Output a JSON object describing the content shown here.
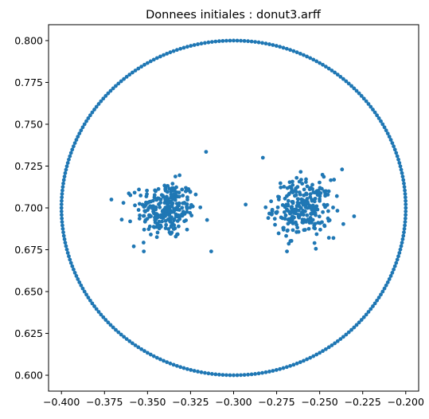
{
  "chart_data": {
    "type": "scatter",
    "title": "Donnees initiales : donut3.arff",
    "xlabel": "",
    "ylabel": "",
    "xlim": [
      -0.4075,
      -0.1925
    ],
    "ylim": [
      0.5905,
      0.8095
    ],
    "xticks": [
      -0.4,
      -0.375,
      -0.35,
      -0.325,
      -0.3,
      -0.275,
      -0.25,
      -0.225,
      -0.2
    ],
    "xtick_labels": [
      "−0.400",
      "−0.375",
      "−0.350",
      "−0.325",
      "−0.300",
      "−0.275",
      "−0.250",
      "−0.225",
      "−0.200"
    ],
    "yticks": [
      0.6,
      0.625,
      0.65,
      0.675,
      0.7,
      0.725,
      0.75,
      0.775,
      0.8
    ],
    "ytick_labels": [
      "0.600",
      "0.625",
      "0.650",
      "0.675",
      "0.700",
      "0.725",
      "0.750",
      "0.775",
      "0.800"
    ],
    "grid": false,
    "marker_color": "#1f77b4",
    "series": [
      {
        "ring": {
          "center": [
            -0.3,
            0.7
          ],
          "radius": 0.1,
          "count": 300
        },
        "clusters": [
          {
            "center": [
              -0.339,
              0.699
            ],
            "spread": 0.0085,
            "count": 250
          },
          {
            "center": [
              -0.26,
              0.7
            ],
            "spread": 0.0085,
            "count": 250
          }
        ],
        "extra_points": [
          [
            -0.316,
            0.7335
          ],
          [
            -0.313,
            0.674
          ],
          [
            -0.371,
            0.705
          ],
          [
            -0.283,
            0.73
          ],
          [
            -0.237,
            0.723
          ],
          [
            -0.293,
            0.702
          ],
          [
            -0.271,
            0.687
          ],
          [
            -0.23,
            0.695
          ],
          [
            -0.322,
            0.708
          ],
          [
            -0.355,
            0.711
          ],
          [
            -0.365,
            0.693
          ],
          [
            -0.358,
            0.677
          ],
          [
            -0.242,
            0.682
          ],
          [
            -0.253,
            0.679
          ],
          [
            -0.269,
            0.674
          ]
        ]
      }
    ]
  }
}
